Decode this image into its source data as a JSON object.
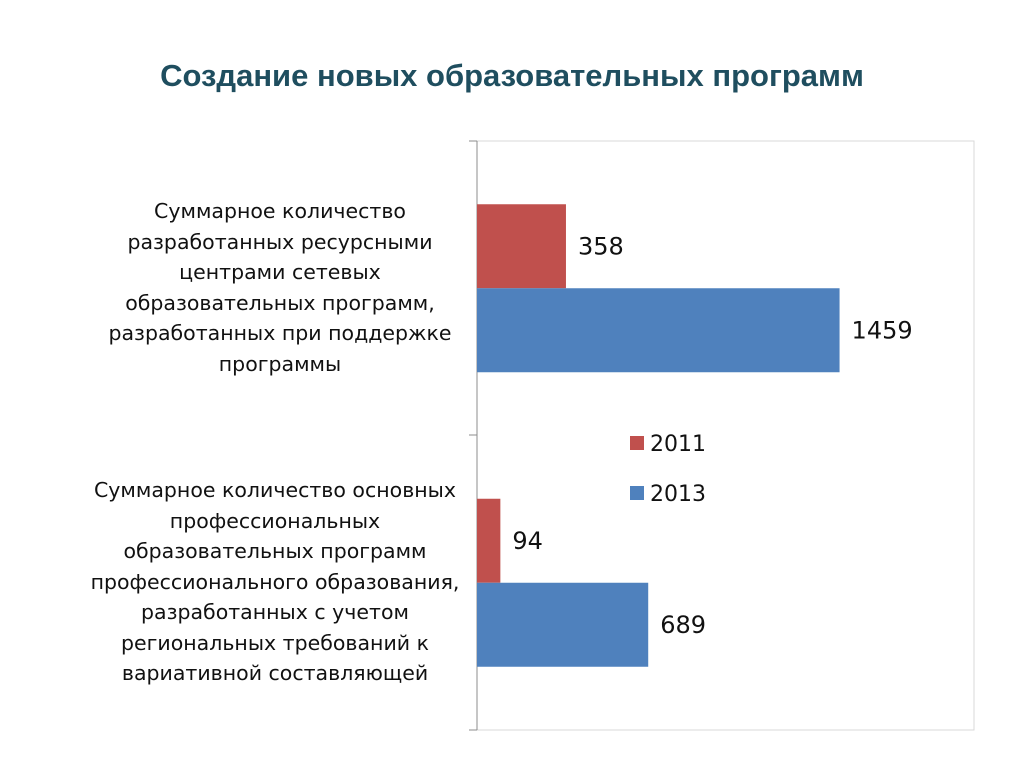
{
  "chart_data": {
    "type": "bar",
    "orientation": "horizontal",
    "title": "Создание новых образовательных программ",
    "categories": [
      "Суммарное количество\nразработанных ресурсными\nцентрами сетевых\nобразовательных программ,\nразработанных при поддержке\nпрограммы",
      "Суммарное количество основных\nпрофессиональных\nобразовательных программ\nпрофессионального образования,\nразработанных  с учетом\nрегиональных требований к\nвариативной составляющей"
    ],
    "series": [
      {
        "name": "2011",
        "values": [
          358,
          94
        ],
        "color": "#c0504d"
      },
      {
        "name": "2013",
        "values": [
          1459,
          689
        ],
        "color": "#4f81bd"
      }
    ],
    "xlim": [
      0,
      2000
    ],
    "grid": false,
    "legend": "right",
    "data_labels": true
  }
}
